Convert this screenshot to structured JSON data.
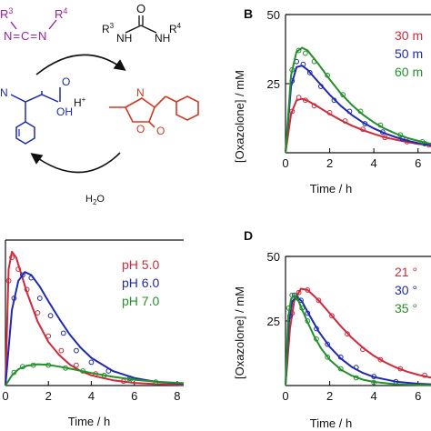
{
  "scheme": {
    "carbodiimide": {
      "r3": "R",
      "r3_sup": "3",
      "core": "N=C=N",
      "r4": "R",
      "r4_sup": "4",
      "color": "#a0209a"
    },
    "urea": {
      "r3": "R",
      "r3_sup": "3",
      "r4": "R",
      "r4_sup": "4",
      "o": "O",
      "nh_left": "N",
      "nh_right": "N",
      "h": "H"
    },
    "amino_acid": {
      "o": "O",
      "oh": "OH",
      "nh": "N",
      "h_plus": "H",
      "h_plus_sup": "+",
      "color": "#1a2aa8"
    },
    "oxazolone": {
      "n": "N",
      "o": "O",
      "o2": "O",
      "color": "#d03a22"
    },
    "water": {
      "h": "H",
      "sub": "2",
      "o": "O"
    }
  },
  "panels": {
    "B": {
      "letter": "B"
    },
    "C": {
      "letter": ""
    },
    "D": {
      "letter": "D"
    }
  },
  "chart_data": [
    {
      "id": "B",
      "type": "line",
      "title": "",
      "xlabel": "Time / h",
      "ylabel": "[Oxazolone] / mM",
      "xlim": [
        0,
        7
      ],
      "ylim": [
        0,
        50
      ],
      "xticks": [
        0,
        2,
        4,
        6
      ],
      "yticks": [
        25,
        50
      ],
      "xtick_labels": [
        "0",
        "2",
        "4",
        "6"
      ],
      "ytick_labels": [
        "25",
        "50"
      ],
      "legend_position": "top-right",
      "series": [
        {
          "name": "30 m",
          "color": "#d02a3a",
          "x": [
            0,
            0.25,
            0.5,
            0.75,
            1,
            1.5,
            2,
            2.5,
            3,
            3.5,
            4,
            4.5,
            5,
            5.5,
            6,
            6.5,
            7
          ],
          "y": [
            0,
            14,
            19,
            19.5,
            18.8,
            16.5,
            14,
            11.8,
            9.8,
            8.2,
            6.8,
            5.6,
            4.7,
            3.9,
            3.2,
            2.7,
            2.2
          ],
          "points_x": [
            0.3,
            0.6,
            0.9,
            1.3,
            2.0,
            2.7,
            3.5,
            4.5,
            5.5,
            6.5
          ],
          "points_y": [
            15,
            20,
            19,
            17,
            14.5,
            11.5,
            8.5,
            5.5,
            4,
            2.8
          ]
        },
        {
          "name": "50 m",
          "color": "#1f2ab0",
          "x": [
            0,
            0.25,
            0.5,
            0.75,
            1,
            1.5,
            2,
            2.5,
            3,
            3.5,
            4,
            4.5,
            5,
            5.5,
            6,
            6.5,
            7
          ],
          "y": [
            0,
            24,
            31,
            31.5,
            30,
            25.5,
            21,
            17,
            13.7,
            11,
            8.8,
            7,
            5.6,
            4.4,
            3.5,
            2.8,
            2.2
          ],
          "points_x": [
            0.3,
            0.5,
            0.8,
            1.1,
            1.6,
            2.2,
            2.9,
            3.6,
            4.4,
            5.3,
            6.3
          ],
          "points_y": [
            26,
            33,
            32,
            29,
            24,
            19,
            15,
            10.5,
            7.5,
            5,
            3.3
          ]
        },
        {
          "name": "60 m",
          "color": "#23902a",
          "x": [
            0,
            0.25,
            0.5,
            0.75,
            1,
            1.5,
            2,
            2.5,
            3,
            3.5,
            4,
            4.5,
            5,
            5.5,
            6,
            6.5,
            7
          ],
          "y": [
            0,
            28,
            36.5,
            38,
            37,
            32,
            26.5,
            21.5,
            17.3,
            13.8,
            11,
            8.7,
            6.9,
            5.4,
            4.3,
            3.4,
            2.7
          ],
          "points_x": [
            0.3,
            0.6,
            0.9,
            1.3,
            1.9,
            2.6,
            3.4,
            4.3,
            5.2,
            6.2
          ],
          "points_y": [
            30,
            37,
            36,
            33,
            28,
            21,
            15,
            10,
            6.5,
            4
          ]
        }
      ]
    },
    {
      "id": "C",
      "type": "line",
      "title": "",
      "xlabel": "Time / h",
      "ylabel": "",
      "xlim": [
        0,
        8.3
      ],
      "ylim": [
        0,
        50
      ],
      "xticks": [
        0,
        2,
        4,
        6,
        8
      ],
      "yticks": [],
      "xtick_labels": [
        "0",
        "2",
        "4",
        "6",
        "8"
      ],
      "ytick_labels": [],
      "legend_position": "top-right",
      "series": [
        {
          "name": "pH 5.0",
          "color": "#d02a3a",
          "x": [
            0,
            0.15,
            0.3,
            0.5,
            0.75,
            1,
            1.5,
            2,
            2.5,
            3,
            3.5,
            4,
            5,
            6,
            7,
            8.3
          ],
          "y": [
            0,
            40,
            46,
            44,
            38,
            32,
            22,
            15,
            10.5,
            7.2,
            5,
            3.5,
            1.8,
            0.9,
            0.5,
            0.2
          ],
          "points_x": [
            0.15,
            0.3,
            0.6,
            1.0,
            1.5,
            2.0,
            2.6,
            3.3,
            4.2,
            5.5
          ],
          "points_y": [
            36,
            44,
            40,
            33,
            25,
            17,
            12,
            7,
            4,
            1.5
          ]
        },
        {
          "name": "pH 6.0",
          "color": "#1f2ab0",
          "x": [
            0,
            0.3,
            0.6,
            0.9,
            1.2,
            1.6,
            2,
            2.5,
            3,
            3.5,
            4,
            5,
            6,
            7,
            8.3
          ],
          "y": [
            0,
            26,
            36,
            39,
            38,
            34,
            29,
            23,
            17.5,
            13,
            9.5,
            5,
            2.6,
            1.3,
            0.5
          ],
          "points_x": [
            0.4,
            0.8,
            1.2,
            1.6,
            2.1,
            2.7,
            3.3,
            4.0,
            4.8,
            5.8
          ],
          "points_y": [
            30,
            38,
            37,
            30,
            24,
            18,
            12,
            8,
            5,
            2.5
          ]
        },
        {
          "name": "pH 7.0",
          "color": "#23902a",
          "x": [
            0,
            0.3,
            0.6,
            1,
            1.5,
            2,
            2.5,
            3,
            4,
            5,
            6,
            7,
            8.3
          ],
          "y": [
            0,
            3.5,
            5.6,
            6.8,
            7.3,
            7.1,
            6.5,
            5.8,
            4.3,
            3,
            2,
            1.3,
            0.8
          ],
          "points_x": [
            0.4,
            0.8,
            1.3,
            2.0,
            2.8,
            3.6,
            4.6,
            5.8,
            7.0
          ],
          "points_y": [
            4.5,
            6.5,
            7,
            7,
            6,
            5,
            3.5,
            2,
            1.2
          ]
        }
      ]
    },
    {
      "id": "D",
      "type": "line",
      "title": "",
      "xlabel": "Time / h",
      "ylabel": "[Oxazolone] / mM",
      "xlim": [
        0,
        7
      ],
      "ylim": [
        0,
        50
      ],
      "xticks": [
        0,
        2,
        4,
        6
      ],
      "yticks": [
        25,
        50
      ],
      "xtick_labels": [
        "0",
        "2",
        "4",
        "6"
      ],
      "ytick_labels": [
        "25",
        "50"
      ],
      "legend_position": "top-right",
      "series": [
        {
          "name": "21 °",
          "color": "#d02a3a",
          "x": [
            0,
            0.2,
            0.4,
            0.7,
            1,
            1.5,
            2,
            2.5,
            3,
            3.5,
            4,
            4.5,
            5,
            5.5,
            6,
            6.5,
            7
          ],
          "y": [
            0,
            22,
            33,
            37.5,
            37,
            33,
            28,
            23,
            18.5,
            14.7,
            11.5,
            9,
            7,
            5.4,
            4.2,
            3.2,
            2.5
          ],
          "points_x": [
            0.3,
            0.6,
            1.0,
            1.5,
            2.1,
            2.8,
            3.5,
            4.3,
            5.2,
            6.3
          ],
          "points_y": [
            28,
            36,
            37,
            33,
            27,
            20,
            14,
            10,
            6.5,
            4
          ]
        },
        {
          "name": "30 °",
          "color": "#1f2ab0",
          "x": [
            0,
            0.15,
            0.3,
            0.5,
            0.75,
            1,
            1.5,
            2,
            2.5,
            3,
            3.5,
            4,
            5,
            6,
            7
          ],
          "y": [
            0,
            24,
            32.5,
            34.5,
            32.5,
            28.5,
            21,
            15,
            10.5,
            7.2,
            4.9,
            3.3,
            1.5,
            0.7,
            0.3
          ],
          "points_x": [
            0.2,
            0.4,
            0.7,
            1.0,
            1.4,
            1.9,
            2.5,
            3.2,
            4.0,
            5.0
          ],
          "points_y": [
            27,
            35,
            33,
            28,
            22,
            16,
            11,
            7,
            3.5,
            1.5
          ]
        },
        {
          "name": "35 °",
          "color": "#23902a",
          "x": [
            0,
            0.12,
            0.25,
            0.4,
            0.6,
            0.8,
            1,
            1.3,
            1.6,
            2,
            2.5,
            3,
            3.5,
            4,
            5,
            6,
            7
          ],
          "y": [
            0,
            26,
            33.5,
            35,
            32.5,
            28.5,
            24.5,
            19,
            14.5,
            10,
            6.2,
            3.8,
            2.3,
            1.4,
            0.5,
            0.2,
            0.1
          ],
          "points_x": [
            0.15,
            0.3,
            0.5,
            0.75,
            1.0,
            1.4,
            1.9,
            2.5,
            3.2,
            4.0
          ],
          "points_y": [
            30,
            35,
            34,
            30,
            25,
            18,
            11,
            6.5,
            3,
            1.2
          ]
        }
      ]
    }
  ]
}
